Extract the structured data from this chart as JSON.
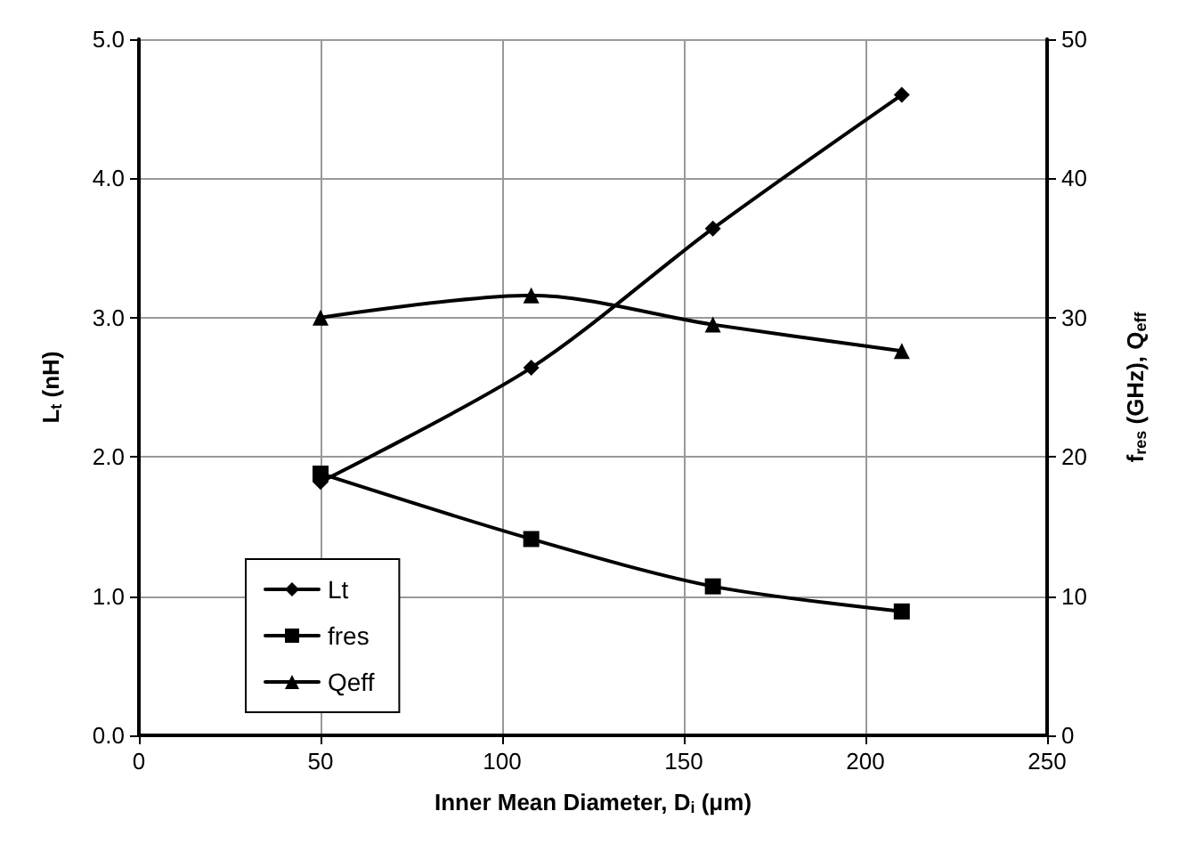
{
  "chart_data": {
    "type": "line",
    "xlabel": "Inner Mean Diameter, D$_{i}$ (μm)",
    "ylabel": "L$_{t}$ (nH)",
    "y2label": "f$_{res}$ (GHz), Q$_{eff}$",
    "x": [
      50,
      108,
      158,
      210
    ],
    "series": [
      {
        "name": "Lt",
        "color": "#000000",
        "marker": "diamond",
        "values": [
          1.82,
          2.64,
          3.64,
          4.6
        ]
      },
      {
        "name": "fres",
        "color": "#000000",
        "marker": "square",
        "axis": "y2",
        "values": [
          18.8,
          14.1,
          10.7,
          8.9
        ]
      },
      {
        "name": "Qeff",
        "color": "#000000",
        "marker": "triangle",
        "axis": "y2",
        "values": [
          30.0,
          31.6,
          29.5,
          27.6
        ]
      }
    ],
    "xlim": [
      0,
      250
    ],
    "xticks": [
      0,
      50,
      100,
      150,
      200,
      250
    ],
    "ylim": [
      0,
      5
    ],
    "yticks": [
      {
        "value": 0,
        "label": "0.0"
      },
      {
        "value": 1,
        "label": "1.0"
      },
      {
        "value": 2,
        "label": "2.0"
      },
      {
        "value": 3,
        "label": "3.0"
      },
      {
        "value": 4,
        "label": "4.0"
      },
      {
        "value": 5,
        "label": "5.0"
      }
    ],
    "y2lim": [
      0,
      50
    ],
    "y2ticks": [
      0,
      10,
      20,
      30,
      40,
      50
    ],
    "grid": true,
    "legend": "bottom left",
    "line_style": "solid"
  }
}
